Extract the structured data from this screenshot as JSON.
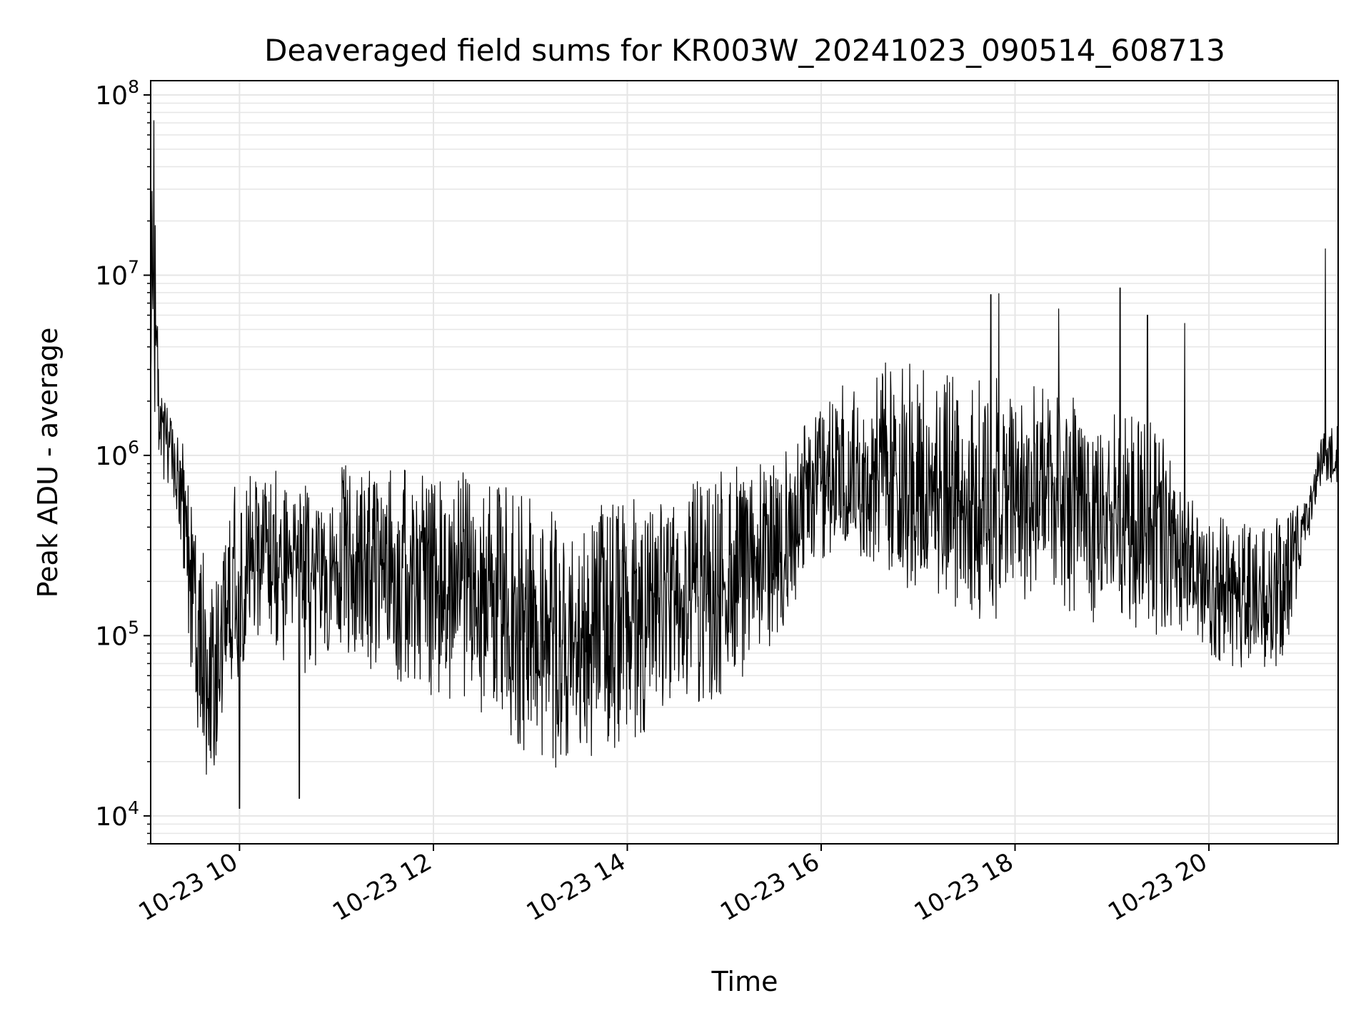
{
  "chart_data": {
    "type": "line",
    "title": "Deaveraged field sums for KR003W_20241023_090514_608713",
    "xlabel": "Time",
    "ylabel": "Peak ADU - average",
    "yscale": "log",
    "ylim": [
      7000,
      120000000
    ],
    "xlim": [
      "2024-10-23 09:05",
      "2024-10-23 21:20"
    ],
    "grid": true,
    "line_color": "#000000",
    "x_ticks": [
      {
        "label": "10-23 10",
        "x": "2024-10-23 10:00"
      },
      {
        "label": "10-23 12",
        "x": "2024-10-23 12:00"
      },
      {
        "label": "10-23 14",
        "x": "2024-10-23 14:00"
      },
      {
        "label": "10-23 16",
        "x": "2024-10-23 16:00"
      },
      {
        "label": "10-23 18",
        "x": "2024-10-23 18:00"
      },
      {
        "label": "10-23 20",
        "x": "2024-10-23 20:00"
      }
    ],
    "y_ticks": [
      {
        "base": "10",
        "exp": "4",
        "value": 10000
      },
      {
        "base": "10",
        "exp": "5",
        "value": 100000
      },
      {
        "base": "10",
        "exp": "6",
        "value": 1000000
      },
      {
        "base": "10",
        "exp": "7",
        "value": 10000000
      },
      {
        "base": "10",
        "exp": "8",
        "value": 100000000
      }
    ],
    "series": [
      {
        "x": [
          "2024-10-23 09:05",
          "2024-10-23 09:06",
          "2024-10-23 09:08",
          "2024-10-23 09:10",
          "2024-10-23 09:15",
          "2024-10-23 09:20",
          "2024-10-23 09:25",
          "2024-10-23 09:30",
          "2024-10-23 09:35",
          "2024-10-23 09:40",
          "2024-10-23 09:45",
          "2024-10-23 09:50",
          "2024-10-23 09:55",
          "2024-10-23 10:00",
          "2024-10-23 10:05",
          "2024-10-23 10:10",
          "2024-10-23 10:20",
          "2024-10-23 10:30",
          "2024-10-23 10:45",
          "2024-10-23 11:00",
          "2024-10-23 11:15",
          "2024-10-23 11:30",
          "2024-10-23 11:45",
          "2024-10-23 12:00",
          "2024-10-23 12:15",
          "2024-10-23 12:30",
          "2024-10-23 12:45",
          "2024-10-23 13:00",
          "2024-10-23 13:15",
          "2024-10-23 13:30",
          "2024-10-23 13:45",
          "2024-10-23 14:00",
          "2024-10-23 14:15",
          "2024-10-23 14:30",
          "2024-10-23 14:45",
          "2024-10-23 15:00",
          "2024-10-23 15:15",
          "2024-10-23 15:30",
          "2024-10-23 15:45",
          "2024-10-23 15:50",
          "2024-10-23 16:00",
          "2024-10-23 16:15",
          "2024-10-23 16:30",
          "2024-10-23 16:45",
          "2024-10-23 17:00",
          "2024-10-23 17:15",
          "2024-10-23 17:30",
          "2024-10-23 17:45",
          "2024-10-23 18:00",
          "2024-10-23 18:15",
          "2024-10-23 18:30",
          "2024-10-23 18:45",
          "2024-10-23 19:00",
          "2024-10-23 19:15",
          "2024-10-23 19:30",
          "2024-10-23 19:45",
          "2024-10-23 20:00",
          "2024-10-23 20:15",
          "2024-10-23 20:30",
          "2024-10-23 20:45",
          "2024-10-23 21:00",
          "2024-10-23 21:10",
          "2024-10-23 21:20"
        ],
        "low": [
          1500000,
          5000000,
          1000000,
          800000,
          700000,
          500000,
          200000,
          50000,
          25000,
          15000,
          15000,
          30000,
          40000,
          60000,
          80000,
          80000,
          70000,
          60000,
          60000,
          70000,
          70000,
          55000,
          50000,
          45000,
          40000,
          35000,
          25000,
          20000,
          18000,
          20000,
          22000,
          25000,
          30000,
          35000,
          40000,
          45000,
          60000,
          80000,
          100000,
          200000,
          250000,
          300000,
          250000,
          200000,
          150000,
          120000,
          110000,
          120000,
          130000,
          140000,
          130000,
          120000,
          110000,
          100000,
          100000,
          90000,
          70000,
          65000,
          65000,
          60000,
          300000,
          700000,
          600000
        ],
        "high": [
          4000000,
          70000000,
          60000000,
          2500000,
          2000000,
          1800000,
          1200000,
          600000,
          400000,
          250000,
          200000,
          400000,
          600000,
          800000,
          900000,
          900000,
          850000,
          800000,
          800000,
          900000,
          1000000,
          900000,
          900000,
          900000,
          850000,
          800000,
          700000,
          600000,
          500000,
          500000,
          550000,
          650000,
          700000,
          750000,
          800000,
          850000,
          950000,
          1000000,
          1200000,
          1800000,
          2000000,
          2500000,
          3000000,
          3500000,
          3500000,
          3000000,
          3000000,
          2800000,
          2600000,
          2500000,
          2200000,
          2000000,
          2000000,
          1800000,
          1500000,
          600000,
          500000,
          450000,
          450000,
          450000,
          600000,
          1500000,
          2000000
        ],
        "spikes": [
          {
            "x": "2024-10-23 09:07",
            "y": 72000000
          },
          {
            "x": "2024-10-23 10:00",
            "y": 11000
          },
          {
            "x": "2024-10-23 10:37",
            "y": 12500
          },
          {
            "x": "2024-10-23 17:45",
            "y": 7800000
          },
          {
            "x": "2024-10-23 17:50",
            "y": 7900000
          },
          {
            "x": "2024-10-23 18:27",
            "y": 6500000
          },
          {
            "x": "2024-10-23 19:05",
            "y": 8500000
          },
          {
            "x": "2024-10-23 19:22",
            "y": 6000000
          },
          {
            "x": "2024-10-23 19:45",
            "y": 5400000
          },
          {
            "x": "2024-10-23 21:12",
            "y": 14000000
          }
        ]
      }
    ]
  }
}
